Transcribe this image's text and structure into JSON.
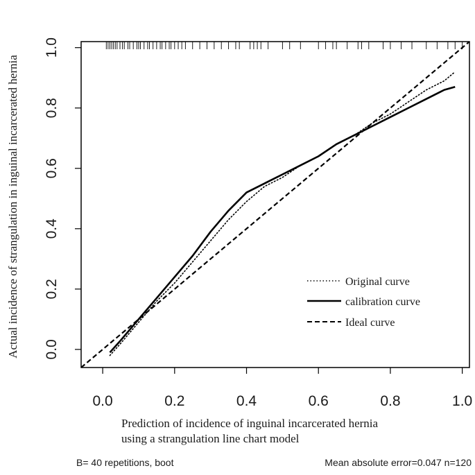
{
  "chart_data": {
    "type": "line",
    "title": "",
    "xlabel_lines": [
      "Prediction of incidence of inguinal incarcerated hernia",
      "using a strangulation line chart model"
    ],
    "ylabel": "Actual incidence of strangulation in inguinal incarcerated hernia",
    "xlim": [
      -0.06,
      1.02
    ],
    "ylim": [
      -0.06,
      1.02
    ],
    "xticks": [
      0.0,
      0.2,
      0.4,
      0.6,
      0.8,
      1.0
    ],
    "yticks": [
      0.0,
      0.2,
      0.4,
      0.6,
      0.8,
      1.0
    ],
    "xtick_labels": [
      "0.0",
      "0.2",
      "0.4",
      "0.6",
      "0.8",
      "1.0"
    ],
    "ytick_labels": [
      "0.0",
      "0.2",
      "0.4",
      "0.6",
      "0.8",
      "1.0"
    ],
    "grid": false,
    "legend_position": "bottom-right",
    "series": [
      {
        "name": "Original curve",
        "style": "dotted",
        "x": [
          0.02,
          0.05,
          0.1,
          0.15,
          0.2,
          0.25,
          0.3,
          0.35,
          0.4,
          0.45,
          0.5,
          0.55,
          0.6,
          0.65,
          0.7,
          0.75,
          0.8,
          0.85,
          0.9,
          0.95,
          0.98
        ],
        "y": [
          -0.02,
          0.02,
          0.09,
          0.16,
          0.22,
          0.29,
          0.36,
          0.43,
          0.49,
          0.54,
          0.57,
          0.61,
          0.64,
          0.68,
          0.71,
          0.75,
          0.78,
          0.82,
          0.86,
          0.89,
          0.92
        ]
      },
      {
        "name": "calibration curve",
        "style": "solid",
        "x": [
          0.02,
          0.05,
          0.1,
          0.15,
          0.2,
          0.25,
          0.3,
          0.35,
          0.4,
          0.45,
          0.5,
          0.55,
          0.6,
          0.65,
          0.7,
          0.75,
          0.8,
          0.85,
          0.9,
          0.95,
          0.98
        ],
        "y": [
          -0.01,
          0.03,
          0.1,
          0.17,
          0.24,
          0.31,
          0.39,
          0.46,
          0.52,
          0.55,
          0.58,
          0.61,
          0.64,
          0.68,
          0.71,
          0.74,
          0.77,
          0.8,
          0.83,
          0.86,
          0.87
        ]
      },
      {
        "name": "Ideal curve",
        "style": "dashed",
        "x": [
          -0.06,
          1.02
        ],
        "y": [
          -0.06,
          1.02
        ]
      }
    ],
    "rug": [
      0.01,
      0.015,
      0.02,
      0.025,
      0.03,
      0.035,
      0.04,
      0.048,
      0.055,
      0.06,
      0.07,
      0.075,
      0.085,
      0.095,
      0.1,
      0.105,
      0.115,
      0.125,
      0.13,
      0.14,
      0.15,
      0.16,
      0.165,
      0.175,
      0.185,
      0.19,
      0.2,
      0.21,
      0.22,
      0.23,
      0.25,
      0.27,
      0.29,
      0.31,
      0.33,
      0.35,
      0.37,
      0.38,
      0.41,
      0.42,
      0.43,
      0.44,
      0.46,
      0.5,
      0.52,
      0.55,
      0.6,
      0.62,
      0.64,
      0.65,
      0.68,
      0.71,
      0.72,
      0.74,
      0.78,
      0.8,
      0.83,
      0.86,
      0.9,
      0.93,
      0.96,
      0.98,
      1.0
    ]
  },
  "footer": {
    "left": "B= 40 repetitions, boot",
    "right": "Mean absolute error=0.047 n=120"
  }
}
